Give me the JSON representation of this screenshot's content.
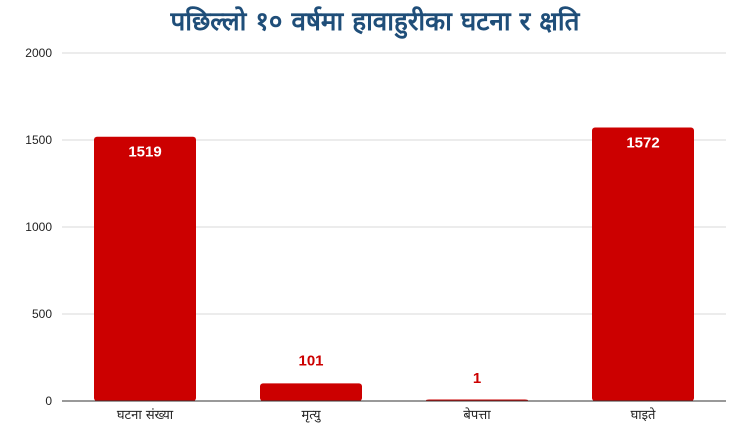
{
  "chart_data": {
    "type": "bar",
    "title": "पछिल्लो १० वर्षमा हावाहुरीका घटना र क्षति",
    "categories": [
      "घटना संख्या",
      "मृत्यु",
      "बेपत्ता",
      "घाइते"
    ],
    "values": [
      1519,
      101,
      1,
      1572
    ],
    "ylim": [
      0,
      2000
    ],
    "yticks": [
      0,
      500,
      1000,
      1500,
      2000
    ],
    "grid": true,
    "legend": "none",
    "bar_color": "#cc0000",
    "label_inside_color": "#ffffff",
    "label_outside_color": "#cc0000"
  }
}
